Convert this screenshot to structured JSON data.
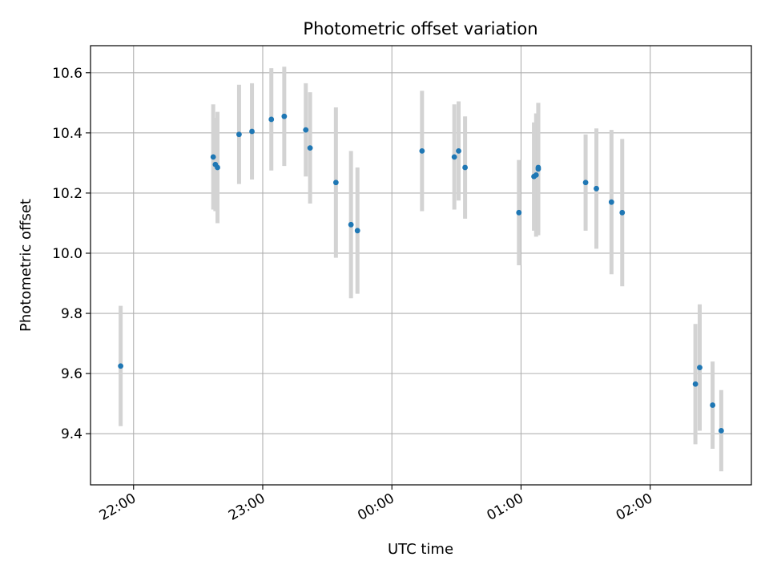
{
  "chart_data": {
    "type": "scatter",
    "title": "Photometric offset variation",
    "xlabel": "UTC time",
    "ylabel": "Photometric offset",
    "x_tick_labels": [
      "22:00",
      "23:00",
      "00:00",
      "01:00",
      "02:00"
    ],
    "x_tick_values": [
      "22:00",
      "23:00",
      "00:00",
      "01:00",
      "02:00"
    ],
    "y_ticks": [
      9.4,
      9.6,
      9.8,
      10.0,
      10.2,
      10.4,
      10.6
    ],
    "y_tick_labels": [
      "9.4",
      "9.6",
      "9.8",
      "10.0",
      "10.2",
      "10.4",
      "10.6"
    ],
    "xlim": [
      "21:40",
      "02:47"
    ],
    "ylim": [
      9.23,
      10.69
    ],
    "grid": true,
    "colors": {
      "marker": "#1f77b4",
      "error_bar": "#d3d3d3",
      "grid": "#b0b0b0"
    },
    "series": [
      {
        "points": [
          {
            "x": "21:54",
            "y": 9.625,
            "yerr": 0.2
          },
          {
            "x": "22:37",
            "y": 10.32,
            "yerr": 0.175
          },
          {
            "x": "22:38",
            "y": 10.295,
            "yerr": 0.155
          },
          {
            "x": "22:39",
            "y": 10.285,
            "yerr": 0.185
          },
          {
            "x": "22:49",
            "y": 10.395,
            "yerr": 0.165
          },
          {
            "x": "22:55",
            "y": 10.405,
            "yerr": 0.16
          },
          {
            "x": "23:04",
            "y": 10.445,
            "yerr": 0.17
          },
          {
            "x": "23:10",
            "y": 10.455,
            "yerr": 0.165
          },
          {
            "x": "23:20",
            "y": 10.41,
            "yerr": 0.155
          },
          {
            "x": "23:22",
            "y": 10.35,
            "yerr": 0.185
          },
          {
            "x": "23:34",
            "y": 10.235,
            "yerr": 0.25
          },
          {
            "x": "23:41",
            "y": 10.095,
            "yerr": 0.245
          },
          {
            "x": "23:44",
            "y": 10.075,
            "yerr": 0.21
          },
          {
            "x": "00:14",
            "y": 10.34,
            "yerr": 0.2
          },
          {
            "x": "00:29",
            "y": 10.32,
            "yerr": 0.175
          },
          {
            "x": "00:31",
            "y": 10.34,
            "yerr": 0.165
          },
          {
            "x": "00:34",
            "y": 10.285,
            "yerr": 0.17
          },
          {
            "x": "00:59",
            "y": 10.135,
            "yerr": 0.175
          },
          {
            "x": "01:06",
            "y": 10.255,
            "yerr": 0.18
          },
          {
            "x": "01:07",
            "y": 10.26,
            "yerr": 0.205
          },
          {
            "x": "01:08",
            "y": 10.28,
            "yerr": 0.22
          },
          {
            "x": "01:08",
            "y": 10.285,
            "yerr": 0.215
          },
          {
            "x": "01:30",
            "y": 10.235,
            "yerr": 0.16
          },
          {
            "x": "01:35",
            "y": 10.215,
            "yerr": 0.2
          },
          {
            "x": "01:42",
            "y": 10.17,
            "yerr": 0.24
          },
          {
            "x": "01:47",
            "y": 10.135,
            "yerr": 0.245
          },
          {
            "x": "02:21",
            "y": 9.565,
            "yerr": 0.2
          },
          {
            "x": "02:23",
            "y": 9.62,
            "yerr": 0.21
          },
          {
            "x": "02:29",
            "y": 9.495,
            "yerr": 0.145
          },
          {
            "x": "02:33",
            "y": 9.41,
            "yerr": 0.135
          }
        ]
      }
    ]
  }
}
